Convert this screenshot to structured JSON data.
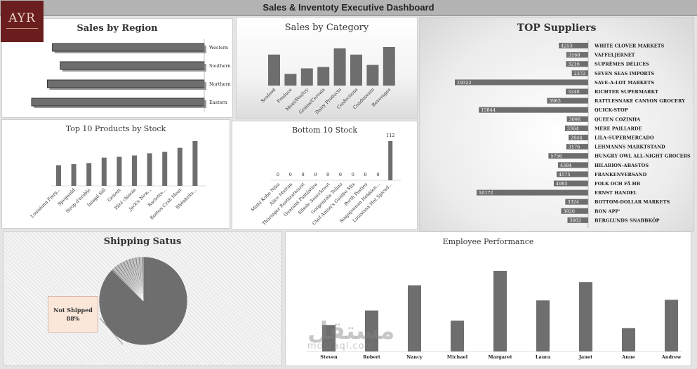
{
  "dashboard": {
    "title": "Sales & Inventoty Executive Dashboard",
    "logo_text": "AYR"
  },
  "colors": {
    "bar": "#6e6e6e",
    "bar_border": "#333333",
    "callout": "#fbe7da",
    "logo": "#6b1e1e"
  },
  "chart_data": [
    {
      "id": "region",
      "type": "bar",
      "orientation": "horizontal",
      "title": "Sales by Region",
      "categories": [
        "Western",
        "Southern",
        "Northern",
        "Eastern"
      ],
      "values": [
        212,
        201,
        219,
        241
      ]
    },
    {
      "id": "category",
      "type": "bar",
      "title": "Sales by Category",
      "categories": [
        "Seafood",
        "Produce",
        "Meat/Poultry",
        "Grains/Cereals",
        "Dairy Products",
        "Confections",
        "Condiments",
        "Beverages"
      ],
      "values": [
        45,
        17,
        25,
        27,
        54,
        45,
        30,
        56
      ]
    },
    {
      "id": "top_stock",
      "type": "bar",
      "title": "Top 10 Products by Stock",
      "categories": [
        "Louisiana Fiery...",
        "Spegesild",
        "Sirop d'érable",
        "Inlagd Sill",
        "Geitost",
        "Pâté chinois",
        "Jack's New...",
        "Raclette...",
        "Boston Crab Meat",
        "Rhönbräu..."
      ],
      "values": [
        76,
        80,
        84,
        104,
        107,
        112,
        120,
        125,
        140,
        165
      ]
    },
    {
      "id": "bottom_stock",
      "type": "bar",
      "title": "Bottom 10 Stock",
      "categories": [
        "Mishi Kobe Niku",
        "Alice Mutton",
        "Thüringer Rostbratwurst",
        "Guaraná Fantástica",
        "Rössle Sauerkraut",
        "Gorgonzola Telino",
        "Chef Anton's Gumbo Mix",
        "Perth Pasties",
        "Singaporean Hokkien...",
        "Louisiana Hot Spiced..."
      ],
      "values": [
        0,
        0,
        0,
        0,
        0,
        0,
        0,
        0,
        0,
        112
      ]
    },
    {
      "id": "suppliers",
      "type": "bar",
      "orientation": "horizontal",
      "title": "TOP Suppliers",
      "categories": [
        "WHITE CLOVER MARKETS",
        "VAFFELJERNET",
        "SUPRÊMES DÉLICES",
        "SEVEN SEAS IMPORTS",
        "SAVE-A-LOT MARKETS",
        "RICHTER SUPERMARKT",
        "RATTLESNAKE CANYON GROCERY",
        "QUICK-STOP",
        "QUEEN COZINHA",
        "MÈRE PAILLARDE",
        "LILA-SUPERMERCADO",
        "LEHMANNS MARKTSTAND",
        "HUNGRY OWL ALL-NIGHT GROCERS",
        "HILARION-ABASTOS",
        "FRANKENVERSAND",
        "FOLK OCH FÄ HB",
        "ERNST HANDEL",
        "BOTTOM-DOLLAR MARKETS",
        "BON APP'",
        "BERGLUNDS SNABBKÖP"
      ],
      "values": [
        4253,
        3168,
        3216,
        2372,
        19322,
        3240,
        5963,
        15844,
        3098,
        3364,
        2844,
        3176,
        5756,
        4384,
        4575,
        4985,
        16172,
        3324,
        3920,
        3002
      ]
    },
    {
      "id": "shipping",
      "type": "pie",
      "title": "Shipping Satus",
      "callout": {
        "label": "Not Shipped",
        "value": "88%"
      },
      "slices": [
        88,
        0.6,
        0.6,
        0.6,
        0.6,
        0.6,
        0.6,
        0.6,
        0.6,
        0.6,
        0.6,
        0.6,
        0.6,
        0.6,
        0.6,
        0.6,
        0.6,
        0.6,
        0.6,
        0.6,
        0.6,
        0.6
      ]
    },
    {
      "id": "employee",
      "type": "bar",
      "title": "Employee Performance",
      "categories": [
        "Steven",
        "Robert",
        "Nancy",
        "Michael",
        "Margaret",
        "Laura",
        "Janet",
        "Anne",
        "Andrew"
      ],
      "values": [
        42,
        65,
        105,
        49,
        128,
        81,
        110,
        37,
        82
      ]
    }
  ],
  "watermark": {
    "ar": "مستقل",
    "en": "mostaql.com"
  }
}
